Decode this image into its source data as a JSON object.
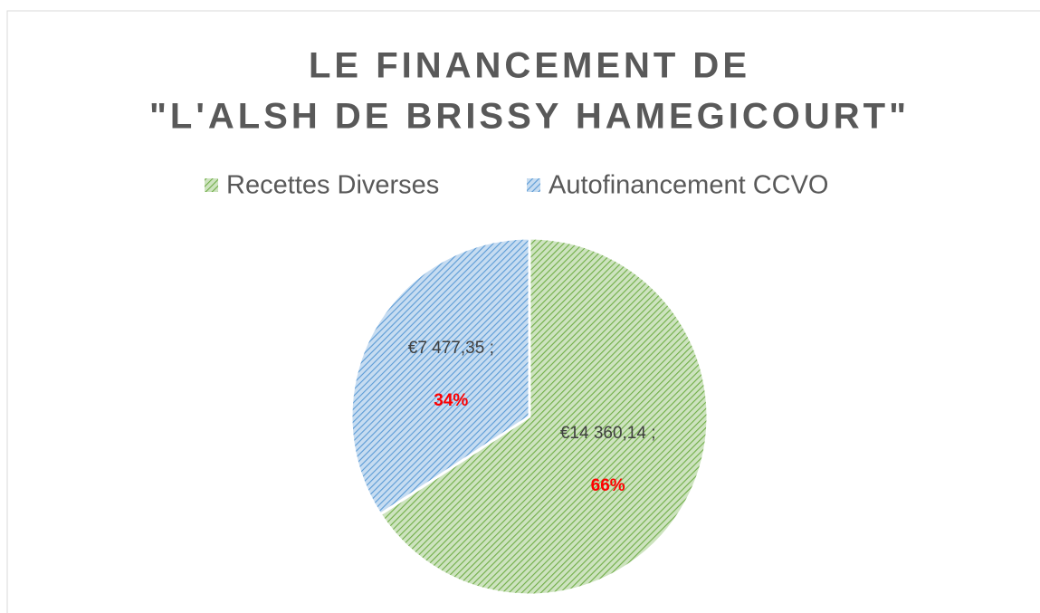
{
  "chart_data": {
    "type": "pie",
    "title": [
      "LE FINANCEMENT DE",
      "\"L'ALSH DE BRISSY HAMEGICOURT\""
    ],
    "categories": [
      "Recettes Diverses",
      "Autofinancement CCVO"
    ],
    "values": [
      14360.14,
      7477.35
    ],
    "value_labels": [
      "€14 360,14 ;",
      "€7 477,35 ;"
    ],
    "percents": [
      66,
      34
    ],
    "percent_labels": [
      "66%",
      "34%"
    ],
    "colors": [
      "#70ad47",
      "#5b9bd5"
    ],
    "legend": "top"
  }
}
